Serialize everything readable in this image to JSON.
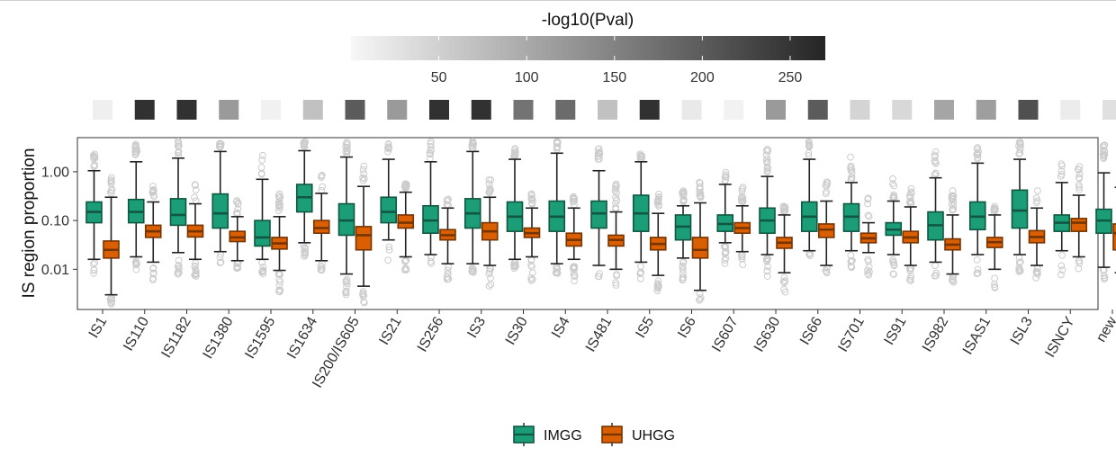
{
  "chart_data": {
    "type": "box",
    "ylabel": "IS region proportion",
    "y_scale": "log10",
    "ylim": [
      0.0015,
      5
    ],
    "y_ticks": [
      {
        "value": 1,
        "label": "1.00"
      },
      {
        "value": 0.1,
        "label": "0.10"
      },
      {
        "value": 0.01,
        "label": "0.01"
      }
    ],
    "categories": [
      "IS1",
      "IS110",
      "IS1182",
      "IS1380",
      "IS1595",
      "IS1634",
      "IS200/IS605",
      "IS21",
      "IS256",
      "IS3",
      "IS30",
      "IS4",
      "IS481",
      "IS5",
      "IS6",
      "IS607",
      "IS630",
      "IS66",
      "IS701",
      "IS91",
      "IS982",
      "ISAS1",
      "ISL3",
      "ISNCY",
      "new"
    ],
    "series": [
      {
        "name": "IMGG",
        "color": "#1b9e77",
        "boxes": [
          {
            "min": 0.016,
            "q1": 0.09,
            "median": 0.15,
            "q3": 0.24,
            "max": 1.05
          },
          {
            "min": 0.018,
            "q1": 0.09,
            "median": 0.15,
            "q3": 0.27,
            "max": 1.6
          },
          {
            "min": 0.022,
            "q1": 0.08,
            "median": 0.13,
            "q3": 0.28,
            "max": 1.9
          },
          {
            "min": 0.023,
            "q1": 0.07,
            "median": 0.14,
            "q3": 0.35,
            "max": 2.6
          },
          {
            "min": 0.016,
            "q1": 0.03,
            "median": 0.045,
            "q3": 0.1,
            "max": 0.7
          },
          {
            "min": 0.035,
            "q1": 0.15,
            "median": 0.3,
            "q3": 0.55,
            "max": 2.7
          },
          {
            "min": 0.008,
            "q1": 0.05,
            "median": 0.1,
            "q3": 0.22,
            "max": 2.0
          },
          {
            "min": 0.04,
            "q1": 0.09,
            "median": 0.15,
            "q3": 0.3,
            "max": 1.8
          },
          {
            "min": 0.02,
            "q1": 0.055,
            "median": 0.1,
            "q3": 0.2,
            "max": 1.6
          },
          {
            "min": 0.013,
            "q1": 0.07,
            "median": 0.14,
            "q3": 0.28,
            "max": 2.6
          },
          {
            "min": 0.016,
            "q1": 0.06,
            "median": 0.12,
            "q3": 0.24,
            "max": 1.8
          },
          {
            "min": 0.013,
            "q1": 0.06,
            "median": 0.12,
            "q3": 0.25,
            "max": 2.4
          },
          {
            "min": 0.012,
            "q1": 0.07,
            "median": 0.14,
            "q3": 0.25,
            "max": 1.05
          },
          {
            "min": 0.014,
            "q1": 0.06,
            "median": 0.14,
            "q3": 0.33,
            "max": 1.6
          },
          {
            "min": 0.017,
            "q1": 0.04,
            "median": 0.075,
            "q3": 0.13,
            "max": 0.2
          },
          {
            "min": 0.035,
            "q1": 0.06,
            "median": 0.085,
            "q3": 0.13,
            "max": 0.55
          },
          {
            "min": 0.02,
            "q1": 0.055,
            "median": 0.1,
            "q3": 0.18,
            "max": 0.8
          },
          {
            "min": 0.024,
            "q1": 0.06,
            "median": 0.12,
            "q3": 0.24,
            "max": 1.8
          },
          {
            "min": 0.024,
            "q1": 0.06,
            "median": 0.12,
            "q3": 0.22,
            "max": 0.6
          },
          {
            "min": 0.02,
            "q1": 0.05,
            "median": 0.065,
            "q3": 0.09,
            "max": 0.25
          },
          {
            "min": 0.014,
            "q1": 0.04,
            "median": 0.08,
            "q3": 0.15,
            "max": 0.75
          },
          {
            "min": 0.02,
            "q1": 0.065,
            "median": 0.12,
            "q3": 0.24,
            "max": 1.5
          },
          {
            "min": 0.02,
            "q1": 0.07,
            "median": 0.16,
            "q3": 0.42,
            "max": 1.8
          },
          {
            "min": 0.024,
            "q1": 0.06,
            "median": 0.09,
            "q3": 0.13,
            "max": 0.6
          },
          {
            "min": 0.011,
            "q1": 0.055,
            "median": 0.1,
            "q3": 0.17,
            "max": 0.95
          }
        ]
      },
      {
        "name": "UHGG",
        "color": "#d95f02",
        "boxes": [
          {
            "min": 0.003,
            "q1": 0.017,
            "median": 0.025,
            "q3": 0.038,
            "max": 0.3
          },
          {
            "min": 0.014,
            "q1": 0.045,
            "median": 0.06,
            "q3": 0.08,
            "max": 0.24
          },
          {
            "min": 0.016,
            "q1": 0.046,
            "median": 0.06,
            "q3": 0.08,
            "max": 0.22
          },
          {
            "min": 0.015,
            "q1": 0.037,
            "median": 0.045,
            "q3": 0.06,
            "max": 0.12
          },
          {
            "min": 0.0095,
            "q1": 0.026,
            "median": 0.034,
            "q3": 0.045,
            "max": 0.12
          },
          {
            "min": 0.015,
            "q1": 0.055,
            "median": 0.07,
            "q3": 0.1,
            "max": 0.36
          },
          {
            "min": 0.0045,
            "q1": 0.025,
            "median": 0.05,
            "q3": 0.075,
            "max": 0.5
          },
          {
            "min": 0.018,
            "q1": 0.07,
            "median": 0.09,
            "q3": 0.13,
            "max": 0.38
          },
          {
            "min": 0.013,
            "q1": 0.04,
            "median": 0.05,
            "q3": 0.065,
            "max": 0.18
          },
          {
            "min": 0.012,
            "q1": 0.04,
            "median": 0.06,
            "q3": 0.09,
            "max": 0.3
          },
          {
            "min": 0.018,
            "q1": 0.045,
            "median": 0.055,
            "q3": 0.07,
            "max": 0.18
          },
          {
            "min": 0.016,
            "q1": 0.03,
            "median": 0.04,
            "q3": 0.055,
            "max": 0.18
          },
          {
            "min": 0.01,
            "q1": 0.03,
            "median": 0.04,
            "q3": 0.05,
            "max": 0.15
          },
          {
            "min": 0.0075,
            "q1": 0.025,
            "median": 0.033,
            "q3": 0.045,
            "max": 0.14
          },
          {
            "min": 0.0037,
            "q1": 0.017,
            "median": 0.025,
            "q3": 0.045,
            "max": 0.23
          },
          {
            "min": 0.023,
            "q1": 0.055,
            "median": 0.07,
            "q3": 0.09,
            "max": 0.2
          },
          {
            "min": 0.0085,
            "q1": 0.027,
            "median": 0.035,
            "q3": 0.045,
            "max": 0.13
          },
          {
            "min": 0.012,
            "q1": 0.045,
            "median": 0.065,
            "q3": 0.085,
            "max": 0.25
          },
          {
            "min": 0.022,
            "q1": 0.035,
            "median": 0.043,
            "q3": 0.055,
            "max": 0.09
          },
          {
            "min": 0.012,
            "q1": 0.035,
            "median": 0.045,
            "q3": 0.06,
            "max": 0.19
          },
          {
            "min": 0.008,
            "q1": 0.025,
            "median": 0.032,
            "q3": 0.042,
            "max": 0.13
          },
          {
            "min": 0.01,
            "q1": 0.028,
            "median": 0.036,
            "q3": 0.045,
            "max": 0.13
          },
          {
            "min": 0.012,
            "q1": 0.035,
            "median": 0.046,
            "q3": 0.062,
            "max": 0.18
          },
          {
            "min": 0.018,
            "q1": 0.06,
            "median": 0.09,
            "q3": 0.11,
            "max": 0.33
          },
          {
            "min": 0.0085,
            "q1": 0.025,
            "median": 0.055,
            "q3": 0.085,
            "max": 0.48
          }
        ]
      }
    ],
    "significance": {
      "title": "-log10(Pval)",
      "scale_min": 0,
      "scale_max": 270,
      "ticks": [
        50,
        100,
        150,
        200,
        250
      ],
      "values": [
        10,
        255,
        255,
        120,
        8,
        70,
        200,
        120,
        255,
        255,
        170,
        180,
        70,
        255,
        18,
        6,
        120,
        200,
        45,
        40,
        105,
        115,
        215,
        14,
        30
      ]
    },
    "legend": {
      "placement": "bottom",
      "entries": [
        "IMGG",
        "UHGG"
      ]
    }
  }
}
